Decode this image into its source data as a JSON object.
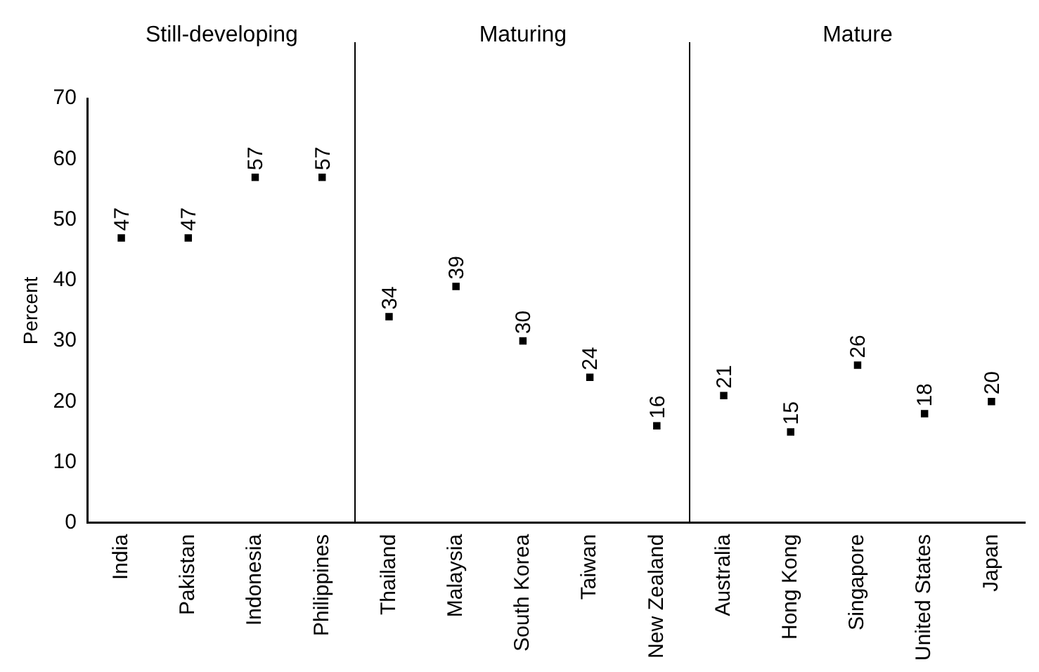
{
  "chart_data": {
    "type": "scatter",
    "ylabel": "Percent",
    "categories": [
      "India",
      "Pakistan",
      "Indonesia",
      "Philippines",
      "Thailand",
      "Malaysia",
      "South Korea",
      "Taiwan",
      "New Zealand",
      "Australia",
      "Hong Kong",
      "Singapore",
      "United States",
      "Japan"
    ],
    "values": [
      47,
      47,
      57,
      57,
      34,
      39,
      30,
      24,
      16,
      21,
      15,
      26,
      18,
      20
    ],
    "color": "#000000",
    "marker": "square",
    "data_labels": true,
    "ylim": [
      0,
      70
    ],
    "yticks": [
      0,
      10,
      20,
      30,
      40,
      50,
      60,
      70
    ],
    "grid": false,
    "legend": false,
    "annotations": [
      "Still-developing",
      "Maturing",
      "Mature"
    ]
  }
}
